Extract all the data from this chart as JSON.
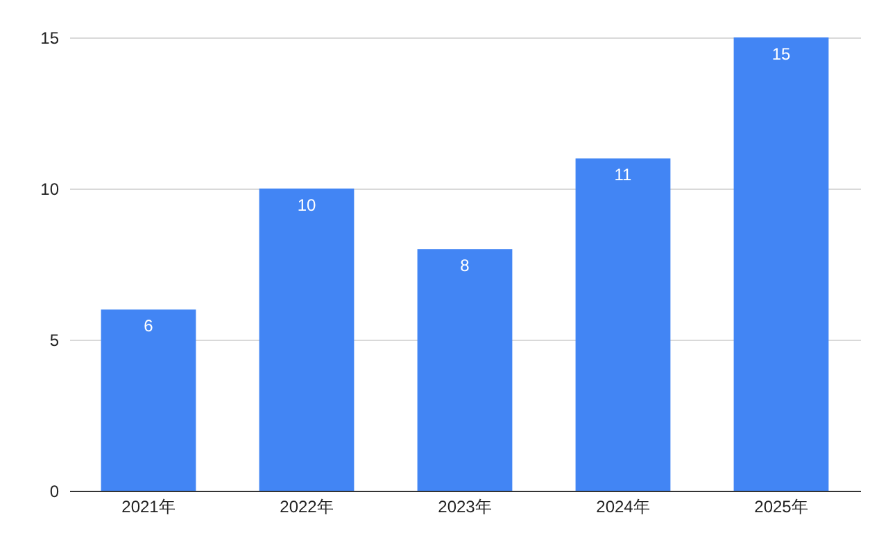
{
  "chart_data": {
    "type": "bar",
    "categories": [
      "2021年",
      "2022年",
      "2023年",
      "2024年",
      "2025年"
    ],
    "values": [
      6,
      10,
      8,
      11,
      15
    ],
    "color": "#4285f4",
    "ylim": [
      0,
      15
    ],
    "yticks": [
      0,
      5,
      10,
      15
    ],
    "grid": "y",
    "data_labels": true
  }
}
